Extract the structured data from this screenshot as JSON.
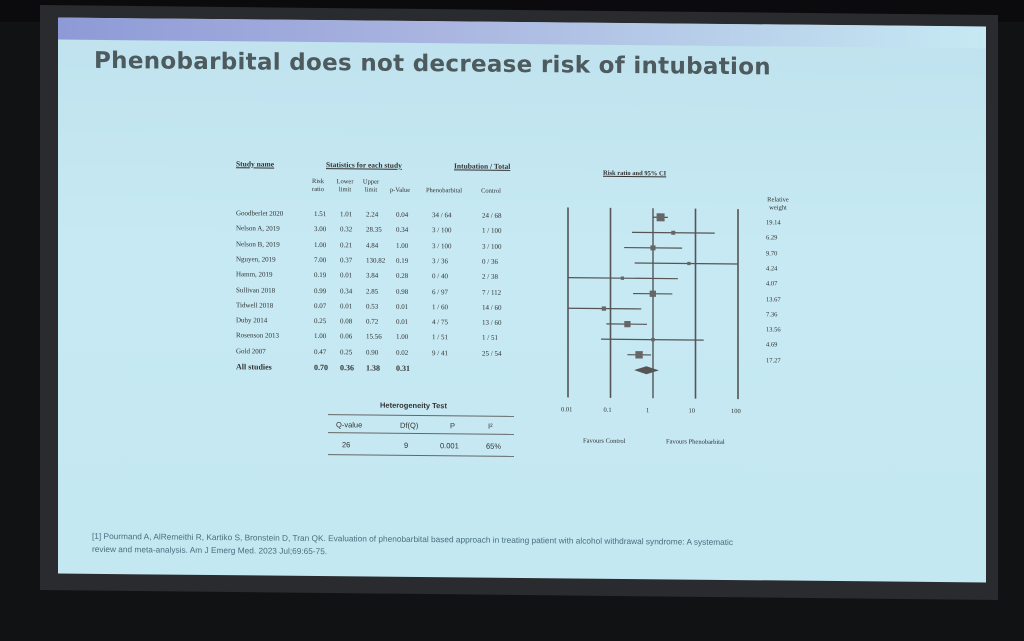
{
  "slide": {
    "title": "Phenobarbital does not decrease risk of intubation",
    "citation_line1": "[1] Pourmand A, AlRemeithi R, Kartiko S, Bronstein D, Tran QK. Evaluation of phenobarbital based approach in treating patient with alcohol withdrawal syndrome: A systematic",
    "citation_line2": "review and meta-analysis. Am J Emerg Med. 2023 Jul;69:65-75."
  },
  "table": {
    "header_study": "Study name",
    "header_stats": "Statistics for each study",
    "header_intub": "Intubation / Total",
    "header_plot": "Risk ratio and 95% CI",
    "col_rr": "Risk ratio",
    "col_lower": "Lower limit",
    "col_upper": "Upper limit",
    "col_p": "p-Value",
    "col_pheno": "Phenobarbital",
    "col_control": "Control",
    "col_weight": "Relative weight",
    "rows": [
      {
        "study": "Goodberlet 2020",
        "rr": "1.51",
        "lo": "1.01",
        "hi": "2.24",
        "p": "0.04",
        "pheno": "34 / 64",
        "control": "24 / 68",
        "weight": "19.14"
      },
      {
        "study": "Nelson A, 2019",
        "rr": "3.00",
        "lo": "0.32",
        "hi": "28.35",
        "p": "0.34",
        "pheno": "3 / 100",
        "control": "1 / 100",
        "weight": "6.29"
      },
      {
        "study": "Nelson B, 2019",
        "rr": "1.00",
        "lo": "0.21",
        "hi": "4.84",
        "p": "1.00",
        "pheno": "3 / 100",
        "control": "3 / 100",
        "weight": "9.70"
      },
      {
        "study": "Nguyen, 2019",
        "rr": "7.00",
        "lo": "0.37",
        "hi": "130.82",
        "p": "0.19",
        "pheno": "3 / 36",
        "control": "0 / 36",
        "weight": "4.24"
      },
      {
        "study": "Hamm, 2019",
        "rr": "0.19",
        "lo": "0.01",
        "hi": "3.84",
        "p": "0.28",
        "pheno": "0 / 40",
        "control": "2 / 38",
        "weight": "4.07"
      },
      {
        "study": "Sullivan 2018",
        "rr": "0.99",
        "lo": "0.34",
        "hi": "2.85",
        "p": "0.98",
        "pheno": "6 / 97",
        "control": "7 / 112",
        "weight": "13.67"
      },
      {
        "study": "Tidwell 2018",
        "rr": "0.07",
        "lo": "0.01",
        "hi": "0.53",
        "p": "0.01",
        "pheno": "1 / 60",
        "control": "14 / 60",
        "weight": "7.36"
      },
      {
        "study": "Duby 2014",
        "rr": "0.25",
        "lo": "0.08",
        "hi": "0.72",
        "p": "0.01",
        "pheno": "4 / 75",
        "control": "13 / 60",
        "weight": "13.56"
      },
      {
        "study": "Rosenson 2013",
        "rr": "1.00",
        "lo": "0.06",
        "hi": "15.56",
        "p": "1.00",
        "pheno": "1 / 51",
        "control": "1 / 51",
        "weight": "4.69"
      },
      {
        "study": "Gold 2007",
        "rr": "0.47",
        "lo": "0.25",
        "hi": "0.90",
        "p": "0.02",
        "pheno": "9 / 41",
        "control": "25 / 54",
        "weight": "17.27"
      }
    ],
    "total": {
      "study": "All studies",
      "rr": "0.70",
      "lo": "0.36",
      "hi": "1.38",
      "p": "0.31"
    }
  },
  "heterogeneity": {
    "title": "Heterogeneity Test",
    "cols": [
      "Q-value",
      "Df(Q)",
      "P",
      "I²"
    ],
    "vals": [
      "26",
      "9",
      "0.001",
      "65%"
    ]
  },
  "plot": {
    "ticks": [
      "0.01",
      "0.1",
      "1",
      "10",
      "100"
    ],
    "favours_left": "Favours Control",
    "favours_right": "Favours Phenobarbital",
    "accent": "#555555",
    "marker": "#666666"
  }
}
